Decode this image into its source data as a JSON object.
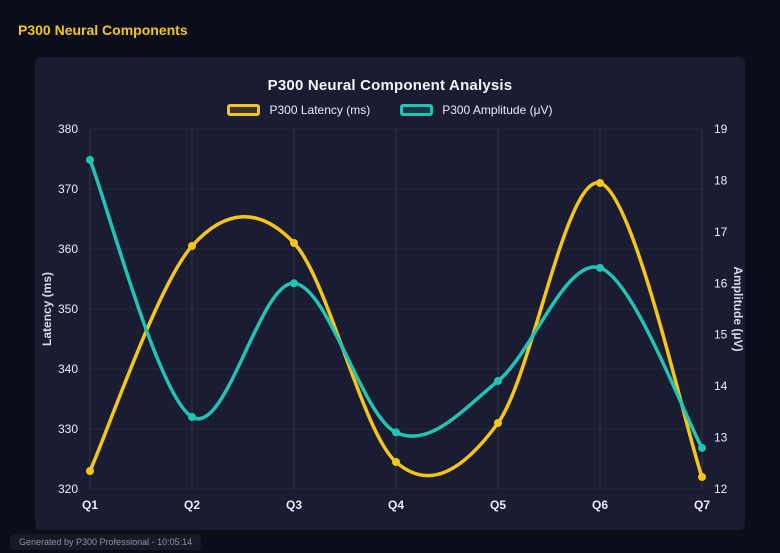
{
  "header": {
    "title": "P300 Neural Components"
  },
  "footer": {
    "text": "Generated by P300 Professional - 10:05:14"
  },
  "colors": {
    "accent_gold": "#f5c518",
    "accent_teal": "#22c3b6",
    "page_bg": "#0b0e1a",
    "panel_bg": "#1a1d31",
    "text_primary": "#f2f4f8",
    "text_ticks": "#e9ecf3",
    "text_muted": "#8d93a5"
  },
  "chart_data": {
    "type": "line",
    "title": "P300 Neural Component Analysis",
    "categories": [
      "Q1",
      "Q2",
      "Q3",
      "Q4",
      "Q5",
      "Q6",
      "Q7"
    ],
    "series": [
      {
        "name": "P300 Latency (ms)",
        "axis": "left",
        "color": "#f5c518",
        "values": [
          323,
          360.5,
          361,
          324.5,
          331,
          371,
          322
        ]
      },
      {
        "name": "P300 Amplitude (μV)",
        "axis": "right",
        "color": "#22c3b6",
        "values": [
          18.4,
          13.4,
          16.0,
          13.1,
          14.1,
          16.3,
          12.8
        ]
      }
    ],
    "left_axis": {
      "label": "Latency (ms)",
      "min": 320,
      "max": 380,
      "step": 10
    },
    "right_axis": {
      "label": "Amplitude (μV)",
      "min": 12,
      "max": 19,
      "step": 1
    },
    "grid": true,
    "legend_position": "top",
    "line_smoothing": "spline"
  }
}
